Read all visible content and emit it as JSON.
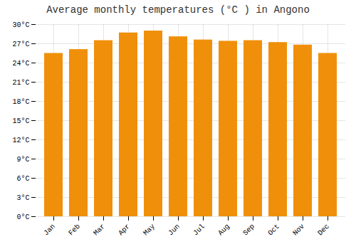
{
  "chart_data": {
    "type": "bar",
    "title": "Average monthly temperatures (°C ) in Angono",
    "categories": [
      "Jan",
      "Feb",
      "Mar",
      "Apr",
      "May",
      "Jun",
      "Jul",
      "Aug",
      "Sep",
      "Oct",
      "Nov",
      "Dec"
    ],
    "values": [
      25.5,
      26.1,
      27.5,
      28.7,
      29.0,
      28.1,
      27.6,
      27.4,
      27.5,
      27.2,
      26.8,
      25.5
    ],
    "color": "#F0900A",
    "ylim": [
      0,
      30
    ],
    "yticks": [
      {
        "value": 0,
        "label": "0°C"
      },
      {
        "value": 3,
        "label": "3°C"
      },
      {
        "value": 6,
        "label": "6°C"
      },
      {
        "value": 9,
        "label": "9°C"
      },
      {
        "value": 12,
        "label": "12°C"
      },
      {
        "value": 15,
        "label": "15°C"
      },
      {
        "value": 18,
        "label": "18°C"
      },
      {
        "value": 21,
        "label": "21°C"
      },
      {
        "value": 24,
        "label": "24°C"
      },
      {
        "value": 27,
        "label": "27°C"
      },
      {
        "value": 30,
        "label": "30°C"
      }
    ],
    "grid": true
  }
}
